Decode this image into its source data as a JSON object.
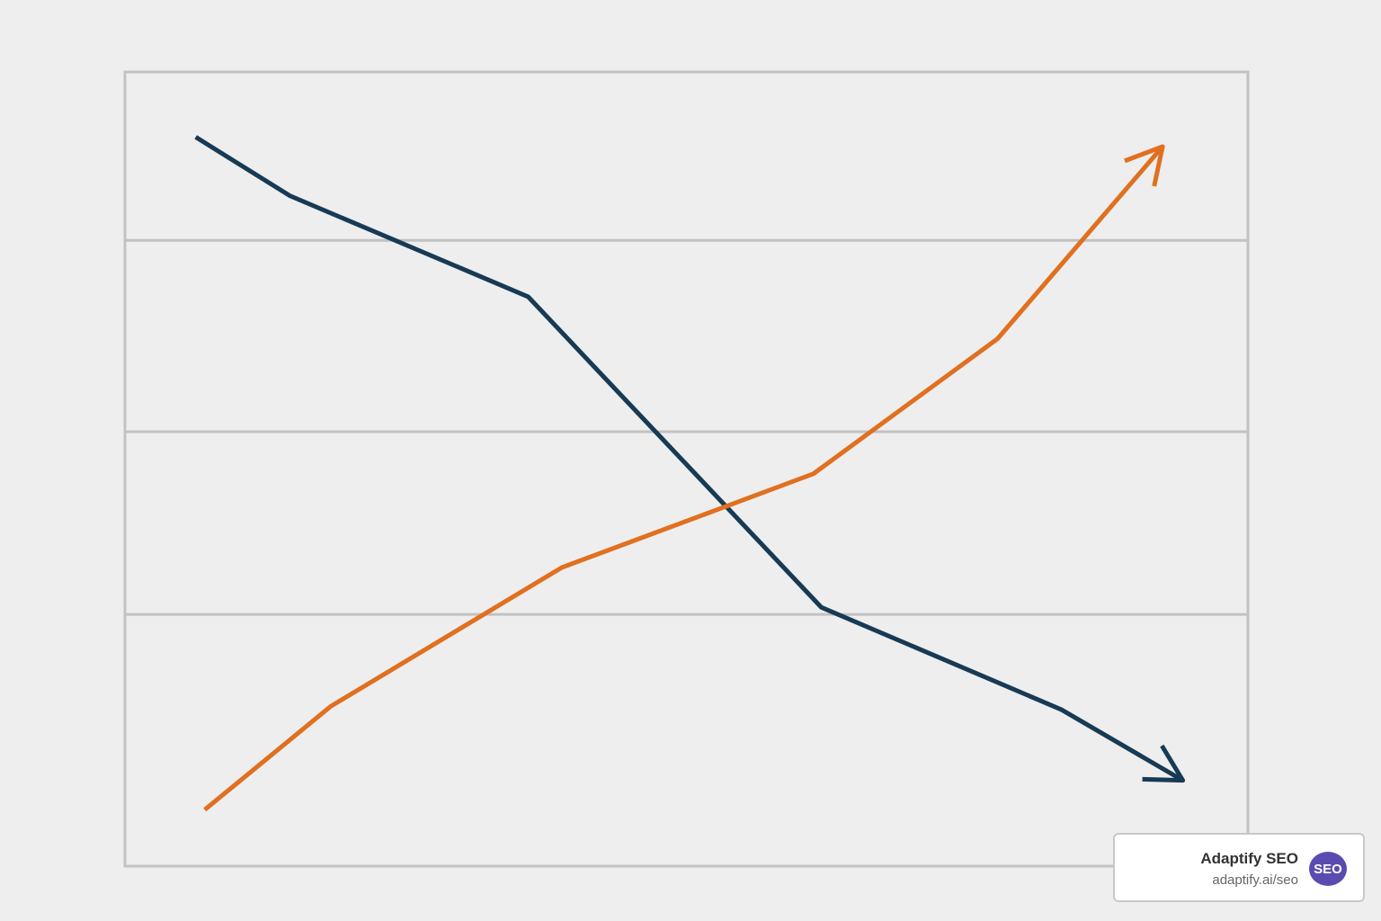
{
  "chart_data": {
    "type": "line",
    "xlim": [
      0,
      100
    ],
    "ylim": [
      0,
      100
    ],
    "yticks": [
      31.7,
      54.7,
      78.8
    ],
    "grid": true,
    "series": [
      {
        "color": "#173a55",
        "x": [
          6.3,
          14.7,
          35.9,
          62.0,
          83.4,
          94.2
        ],
        "values": [
          91.8,
          84.4,
          71.7,
          32.6,
          19.7,
          10.8
        ]
      },
      {
        "color": "#e07020",
        "x": [
          7.1,
          18.3,
          38.9,
          61.3,
          77.7,
          92.4
        ],
        "values": [
          7.1,
          20.1,
          37.6,
          49.4,
          66.4,
          90.6
        ]
      }
    ]
  },
  "badge": {
    "title": "Adaptify SEO",
    "url": "adaptify.ai/seo",
    "icon": "SEO"
  }
}
